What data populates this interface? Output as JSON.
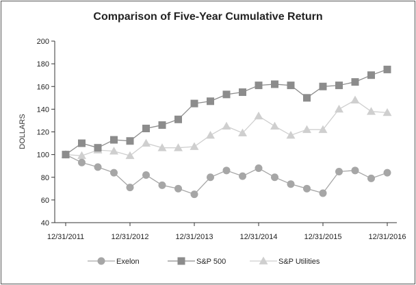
{
  "chart_data": {
    "type": "line",
    "title": "Comparison of Five-Year Cumulative Return",
    "ylabel": "DOLLARS",
    "xlabel": "",
    "ylim": [
      40,
      200
    ],
    "yticks": [
      40,
      60,
      80,
      100,
      120,
      140,
      160,
      180,
      200
    ],
    "xlim": [
      0,
      20
    ],
    "xticks": [
      {
        "x": 0,
        "label": "12/31/2011"
      },
      {
        "x": 4,
        "label": "12/31/2012"
      },
      {
        "x": 8,
        "label": "12/31/2013"
      },
      {
        "x": 12,
        "label": "12/31/2014"
      },
      {
        "x": 16,
        "label": "12/31/2015"
      },
      {
        "x": 20,
        "label": "12/31/2016"
      }
    ],
    "grid": false,
    "legend_position": "bottom",
    "series": [
      {
        "name": "Exelon",
        "marker": "circle",
        "color": "#a6a6a6",
        "values": [
          100,
          93,
          89,
          84,
          71,
          82,
          73,
          70,
          65,
          80,
          86,
          81,
          88,
          80,
          74,
          70,
          66,
          85,
          86,
          79,
          84
        ]
      },
      {
        "name": "S&P 500",
        "marker": "square",
        "color": "#8c8c8c",
        "values": [
          100,
          110,
          106,
          113,
          112,
          123,
          126,
          131,
          145,
          147,
          153,
          155,
          161,
          162,
          161,
          150,
          160,
          161,
          164,
          170,
          175
        ]
      },
      {
        "name": "S&P Utilities",
        "marker": "triangle",
        "color": "#cfcfcf",
        "values": [
          100,
          99,
          104,
          103,
          99,
          110,
          106,
          106,
          107,
          117,
          125,
          119,
          134,
          125,
          117,
          122,
          122,
          140,
          148,
          138,
          137
        ]
      }
    ]
  }
}
